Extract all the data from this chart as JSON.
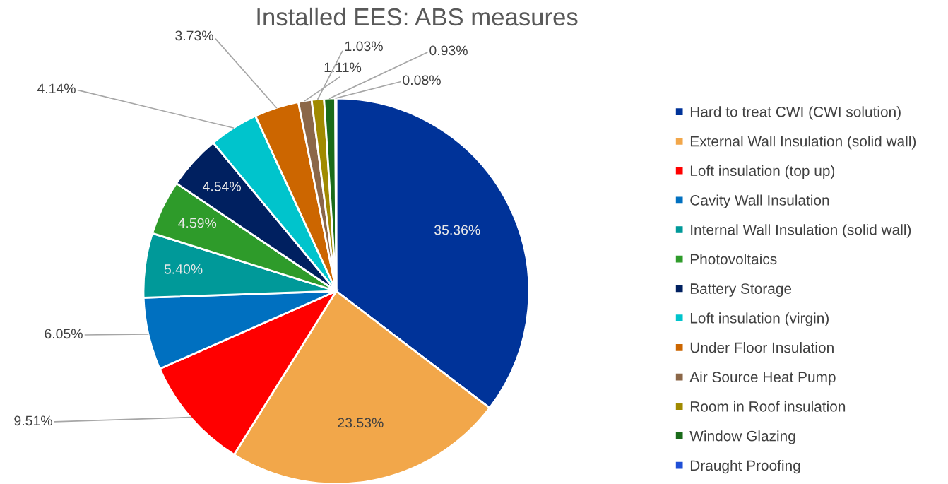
{
  "chart_data": {
    "type": "pie",
    "title": "Installed EES: ABS measures",
    "categories": [
      "Hard to treat CWI (CWI solution)",
      "External Wall Insulation (solid wall)",
      "Loft insulation (top up)",
      "Cavity Wall Insulation",
      "Internal Wall Insulation (solid wall)",
      "Photovoltaics",
      "Battery Storage",
      "Loft insulation (virgin)",
      "Under Floor Insulation",
      "Air Source Heat Pump",
      "Room in Roof insulation",
      "Window Glazing",
      "Draught Proofing"
    ],
    "values": [
      35.36,
      23.53,
      9.51,
      6.05,
      5.4,
      4.59,
      4.54,
      4.14,
      3.73,
      1.11,
      1.03,
      0.93,
      0.08
    ],
    "colors": [
      "#003399",
      "#f2a74a",
      "#ff0000",
      "#0070c0",
      "#009999",
      "#2e9b2a",
      "#002060",
      "#00c4cc",
      "#cc6600",
      "#8b6748",
      "#a08a00",
      "#1a6b1a",
      "#1f4fd6"
    ],
    "value_labels": [
      "35.36%",
      "23.53%",
      "9.51%",
      "6.05%",
      "5.40%",
      "4.59%",
      "4.54%",
      "4.14%",
      "3.73%",
      "1.11%",
      "1.03%",
      "0.93%",
      "0.08%"
    ],
    "legend": "right"
  }
}
